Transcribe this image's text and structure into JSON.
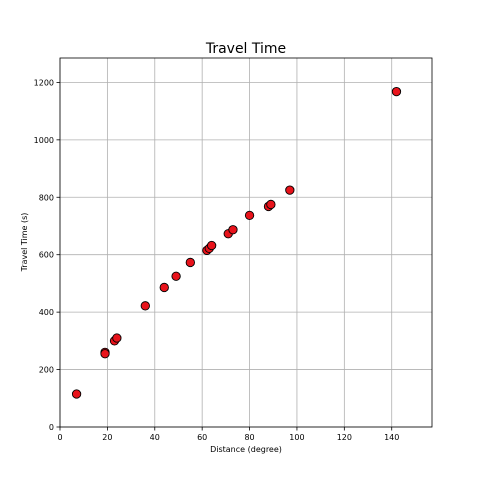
{
  "chart_data": {
    "type": "scatter",
    "title": "Travel Time",
    "xlabel": "Distance (degree)",
    "ylabel": "Travel Time (s)",
    "xlim": [
      0,
      157
    ],
    "ylim": [
      0,
      1285
    ],
    "xticks": [
      0,
      20,
      40,
      60,
      80,
      100,
      120,
      140
    ],
    "yticks": [
      0,
      200,
      400,
      600,
      800,
      1000,
      1200
    ],
    "grid": true,
    "marker_color": "#e8131b",
    "marker_edge_color": "#000000",
    "points": [
      {
        "x": 7,
        "y": 115
      },
      {
        "x": 19,
        "y": 260
      },
      {
        "x": 19,
        "y": 255
      },
      {
        "x": 23,
        "y": 300
      },
      {
        "x": 24,
        "y": 310
      },
      {
        "x": 36,
        "y": 422
      },
      {
        "x": 44,
        "y": 486
      },
      {
        "x": 49,
        "y": 525
      },
      {
        "x": 55,
        "y": 573
      },
      {
        "x": 62,
        "y": 615
      },
      {
        "x": 63,
        "y": 622
      },
      {
        "x": 64,
        "y": 632
      },
      {
        "x": 71,
        "y": 673
      },
      {
        "x": 73,
        "y": 687
      },
      {
        "x": 80,
        "y": 737
      },
      {
        "x": 88,
        "y": 768
      },
      {
        "x": 89,
        "y": 775
      },
      {
        "x": 97,
        "y": 825
      },
      {
        "x": 142,
        "y": 1168
      }
    ]
  }
}
